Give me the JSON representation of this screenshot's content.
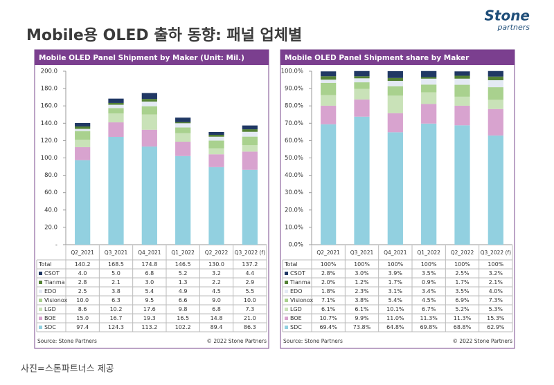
{
  "header": {
    "title": "Mobile용 OLED 출하 동향: 패널 업체별",
    "logo": "Stone",
    "logo_sub": "partners"
  },
  "caption": "사진=스톤파트너스 제공",
  "chart_data": [
    {
      "type": "stacked_bar",
      "title": "Mobile OLED Panel Shipment by Maker (Unit: Mil.)",
      "categories": [
        "Q2_2021",
        "Q3_2021",
        "Q4_2021",
        "Q1_2022",
        "Q2_2022",
        "Q3_2022 (f)"
      ],
      "totals": {
        "name": "Total",
        "values": [
          140.2,
          168.5,
          174.8,
          146.5,
          130.0,
          137.2
        ],
        "value_labels": [
          "140.2",
          "168.5",
          "174.8",
          "146.5",
          "130.0",
          "137.2"
        ]
      },
      "series": [
        {
          "name": "CSOT",
          "color": "#203864",
          "values": [
            4.0,
            5.0,
            6.8,
            5.2,
            3.2,
            4.4
          ],
          "value_labels": [
            "4.0",
            "5.0",
            "6.8",
            "5.2",
            "3.2",
            "4.4"
          ]
        },
        {
          "name": "Tianma",
          "color": "#548235",
          "values": [
            2.8,
            2.1,
            3.0,
            1.3,
            2.2,
            2.9
          ],
          "value_labels": [
            "2.8",
            "2.1",
            "3.0",
            "1.3",
            "2.2",
            "2.9"
          ]
        },
        {
          "name": "EDO",
          "color": "#e4eaf4",
          "values": [
            2.5,
            3.8,
            5.4,
            4.9,
            4.5,
            5.5
          ],
          "value_labels": [
            "2.5",
            "3.8",
            "5.4",
            "4.9",
            "4.5",
            "5.5"
          ]
        },
        {
          "name": "Visionox",
          "color": "#a9d18e",
          "values": [
            10.0,
            6.3,
            9.5,
            6.6,
            9.0,
            10.0
          ],
          "value_labels": [
            "10.0",
            "6.3",
            "9.5",
            "6.6",
            "9.0",
            "10.0"
          ]
        },
        {
          "name": "LGD",
          "color": "#c9e2b8",
          "values": [
            8.6,
            10.2,
            17.6,
            9.8,
            6.8,
            7.3
          ],
          "value_labels": [
            "8.6",
            "10.2",
            "17.6",
            "9.8",
            "6.8",
            "7.3"
          ]
        },
        {
          "name": "BOE",
          "color": "#d8a3cf",
          "values": [
            15.0,
            16.7,
            19.3,
            16.5,
            14.8,
            21.0
          ],
          "value_labels": [
            "15.0",
            "16.7",
            "19.3",
            "16.5",
            "14.8",
            "21.0"
          ]
        },
        {
          "name": "SDC",
          "color": "#92d0e0",
          "values": [
            97.4,
            124.3,
            113.2,
            102.2,
            89.4,
            86.3
          ],
          "value_labels": [
            "97.4",
            "124.3",
            "113.2",
            "102.2",
            "89.4",
            "86.3"
          ]
        }
      ],
      "ylim": [
        0,
        200
      ],
      "yticks": [
        {
          "value": 0,
          "label": "-"
        },
        {
          "value": 20,
          "label": "20.0"
        },
        {
          "value": 40,
          "label": "40.0"
        },
        {
          "value": 60,
          "label": "60.0"
        },
        {
          "value": 80,
          "label": "80.0"
        },
        {
          "value": 100,
          "label": "100.0"
        },
        {
          "value": 120,
          "label": "120.0"
        },
        {
          "value": 140,
          "label": "140.0"
        },
        {
          "value": 160,
          "label": "160.0"
        },
        {
          "value": 180,
          "label": "180.0"
        },
        {
          "value": 200,
          "label": "200.0"
        }
      ],
      "source": "Source: Stone Partners",
      "copyright": "© 2022 Stone Partners"
    },
    {
      "type": "stacked_bar",
      "title": "Mobile OLED Panel Shipment share by Maker",
      "categories": [
        "Q2_2021",
        "Q3_2021",
        "Q4_2021",
        "Q1_2022",
        "Q2_2022",
        "Q3_2022 (f)"
      ],
      "totals": {
        "name": "Total",
        "values": [
          100,
          100,
          100,
          100,
          100,
          100
        ],
        "value_labels": [
          "100%",
          "100%",
          "100%",
          "100%",
          "100%",
          "100%"
        ]
      },
      "series": [
        {
          "name": "CSOT",
          "color": "#203864",
          "values": [
            2.8,
            3.0,
            3.9,
            3.5,
            2.5,
            3.2
          ],
          "value_labels": [
            "2.8%",
            "3.0%",
            "3.9%",
            "3.5%",
            "2.5%",
            "3.2%"
          ]
        },
        {
          "name": "Tianma",
          "color": "#548235",
          "values": [
            2.0,
            1.2,
            1.7,
            0.9,
            1.7,
            2.1
          ],
          "value_labels": [
            "2.0%",
            "1.2%",
            "1.7%",
            "0.9%",
            "1.7%",
            "2.1%"
          ]
        },
        {
          "name": "EDO",
          "color": "#e4eaf4",
          "values": [
            1.8,
            2.3,
            3.1,
            3.4,
            3.5,
            4.0
          ],
          "value_labels": [
            "1.8%",
            "2.3%",
            "3.1%",
            "3.4%",
            "3.5%",
            "4.0%"
          ]
        },
        {
          "name": "Visionox",
          "color": "#a9d18e",
          "values": [
            7.1,
            3.8,
            5.4,
            4.5,
            6.9,
            7.3
          ],
          "value_labels": [
            "7.1%",
            "3.8%",
            "5.4%",
            "4.5%",
            "6.9%",
            "7.3%"
          ]
        },
        {
          "name": "LGD",
          "color": "#c9e2b8",
          "values": [
            6.1,
            6.1,
            10.1,
            6.7,
            5.2,
            5.3
          ],
          "value_labels": [
            "6.1%",
            "6.1%",
            "10.1%",
            "6.7%",
            "5.2%",
            "5.3%"
          ]
        },
        {
          "name": "BOE",
          "color": "#d8a3cf",
          "values": [
            10.7,
            9.9,
            11.0,
            11.3,
            11.3,
            15.3
          ],
          "value_labels": [
            "10.7%",
            "9.9%",
            "11.0%",
            "11.3%",
            "11.3%",
            "15.3%"
          ]
        },
        {
          "name": "SDC",
          "color": "#92d0e0",
          "values": [
            69.4,
            73.8,
            64.8,
            69.8,
            68.8,
            62.9
          ],
          "value_labels": [
            "69.4%",
            "73.8%",
            "64.8%",
            "69.8%",
            "68.8%",
            "62.9%"
          ]
        }
      ],
      "ylim": [
        0,
        100
      ],
      "yticks": [
        {
          "value": 0,
          "label": "0.0%"
        },
        {
          "value": 10,
          "label": "10.0%"
        },
        {
          "value": 20,
          "label": "20.0%"
        },
        {
          "value": 30,
          "label": "30.0%"
        },
        {
          "value": 40,
          "label": "40.0%"
        },
        {
          "value": 50,
          "label": "50.0%"
        },
        {
          "value": 60,
          "label": "60.0%"
        },
        {
          "value": 70,
          "label": "70.0%"
        },
        {
          "value": 80,
          "label": "80.0%"
        },
        {
          "value": 90,
          "label": "90.0%"
        },
        {
          "value": 100,
          "label": "100.0%"
        }
      ],
      "source": "Source: Stone Partners",
      "copyright": "© 2022 Stone Partners"
    }
  ]
}
